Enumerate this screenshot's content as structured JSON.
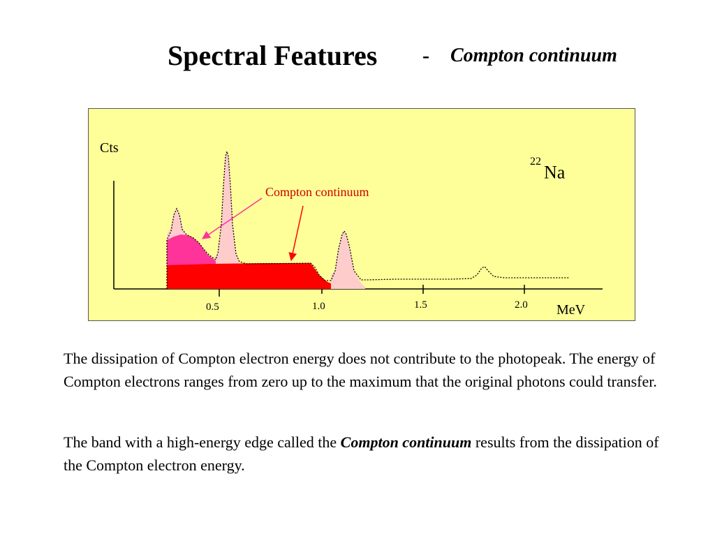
{
  "title": {
    "main": "Spectral Features",
    "dash": "-",
    "sub": "Compton continuum"
  },
  "figure": {
    "y_axis_label": "Cts",
    "x_axis_label": "MeV",
    "x_ticks": [
      "0.5",
      "1.0",
      "1.5",
      "2.0"
    ],
    "isotope_mass": "22",
    "isotope_symbol": "Na",
    "annotation": "Compton continuum",
    "colors": {
      "background": "#ffff99",
      "compton_continuum": "#ff0000",
      "backscatter_region": "#ff3399",
      "photopeak": "#ffcccc",
      "annotation_text": "#cc0000",
      "pointer_arrow": "#ff3399",
      "continuum_arrow": "#ff0000"
    }
  },
  "paragraphs": {
    "p1": "The dissipation of Compton electron energy does not contribute to the photopeak. The energy of Compton electrons ranges from zero up to the maximum that the original photons could transfer.",
    "p2_before": "The band with a high-energy edge called the ",
    "p2_emph": "Compton continuum",
    "p2_after": " results from the dissipation of the Compton electron energy."
  }
}
